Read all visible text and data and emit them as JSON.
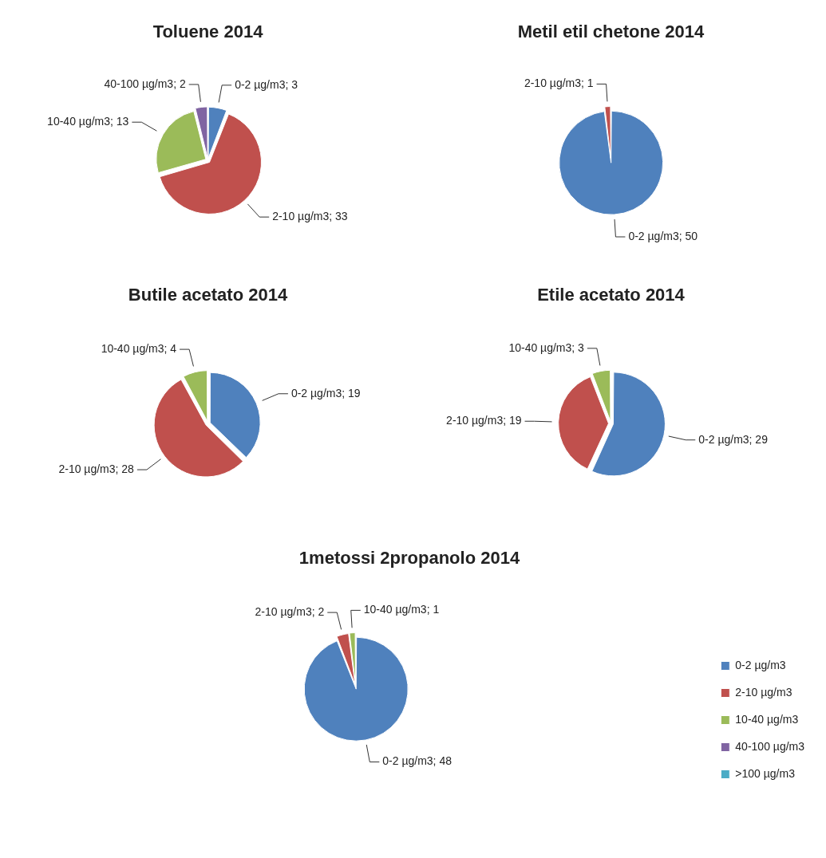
{
  "chart_data": [
    {
      "type": "pie",
      "title": "Toluene 2014",
      "categories": [
        "0-2 µg/m3",
        "2-10 µg/m3",
        "10-40 µg/m3",
        "40-100 µg/m3"
      ],
      "values": [
        3,
        33,
        13,
        2
      ],
      "colors": [
        "#4f81bd",
        "#c0504d",
        "#9bbb59",
        "#8064a2"
      ],
      "value_labels": [
        "; 3",
        "; 33",
        "; 13",
        "; 2"
      ],
      "legend": false
    },
    {
      "type": "pie",
      "title": "Metil etil chetone 2014",
      "categories": [
        "0-2 µg/m3",
        "2-10 µg/m3"
      ],
      "values": [
        50,
        1
      ],
      "colors": [
        "#4f81bd",
        "#c0504d"
      ],
      "value_labels": [
        "; 50",
        "; 1"
      ],
      "legend": false
    },
    {
      "type": "pie",
      "title": "Butile acetato 2014",
      "categories": [
        "0-2 µg/m3",
        "2-10 µg/m3",
        "10-40 µg/m3"
      ],
      "values": [
        19,
        28,
        4
      ],
      "colors": [
        "#4f81bd",
        "#c0504d",
        "#9bbb59"
      ],
      "value_labels": [
        "; 19",
        "; 28",
        "; 4"
      ],
      "legend": false
    },
    {
      "type": "pie",
      "title": "Etile acetato 2014",
      "categories": [
        "0-2 µg/m3",
        "2-10 µg/m3",
        "10-40 µg/m3"
      ],
      "values": [
        29,
        19,
        3
      ],
      "colors": [
        "#4f81bd",
        "#c0504d",
        "#9bbb59"
      ],
      "value_labels": [
        "; 29",
        "; 19",
        "; 3"
      ],
      "legend": false
    },
    {
      "type": "pie",
      "title": "1metossi 2propanolo 2014",
      "categories": [
        "0-2 µg/m3",
        "2-10 µg/m3",
        "10-40 µg/m3",
        "40-100 µg/m3",
        ">100 µg/m3"
      ],
      "values": [
        48,
        2,
        1,
        null,
        null
      ],
      "colors": [
        "#4f81bd",
        "#c0504d",
        "#9bbb59",
        "#8064a2",
        "#4bacc6"
      ],
      "value_labels": [
        "; 48",
        "; 2",
        "; 1",
        null,
        null
      ],
      "legend": "right"
    }
  ]
}
